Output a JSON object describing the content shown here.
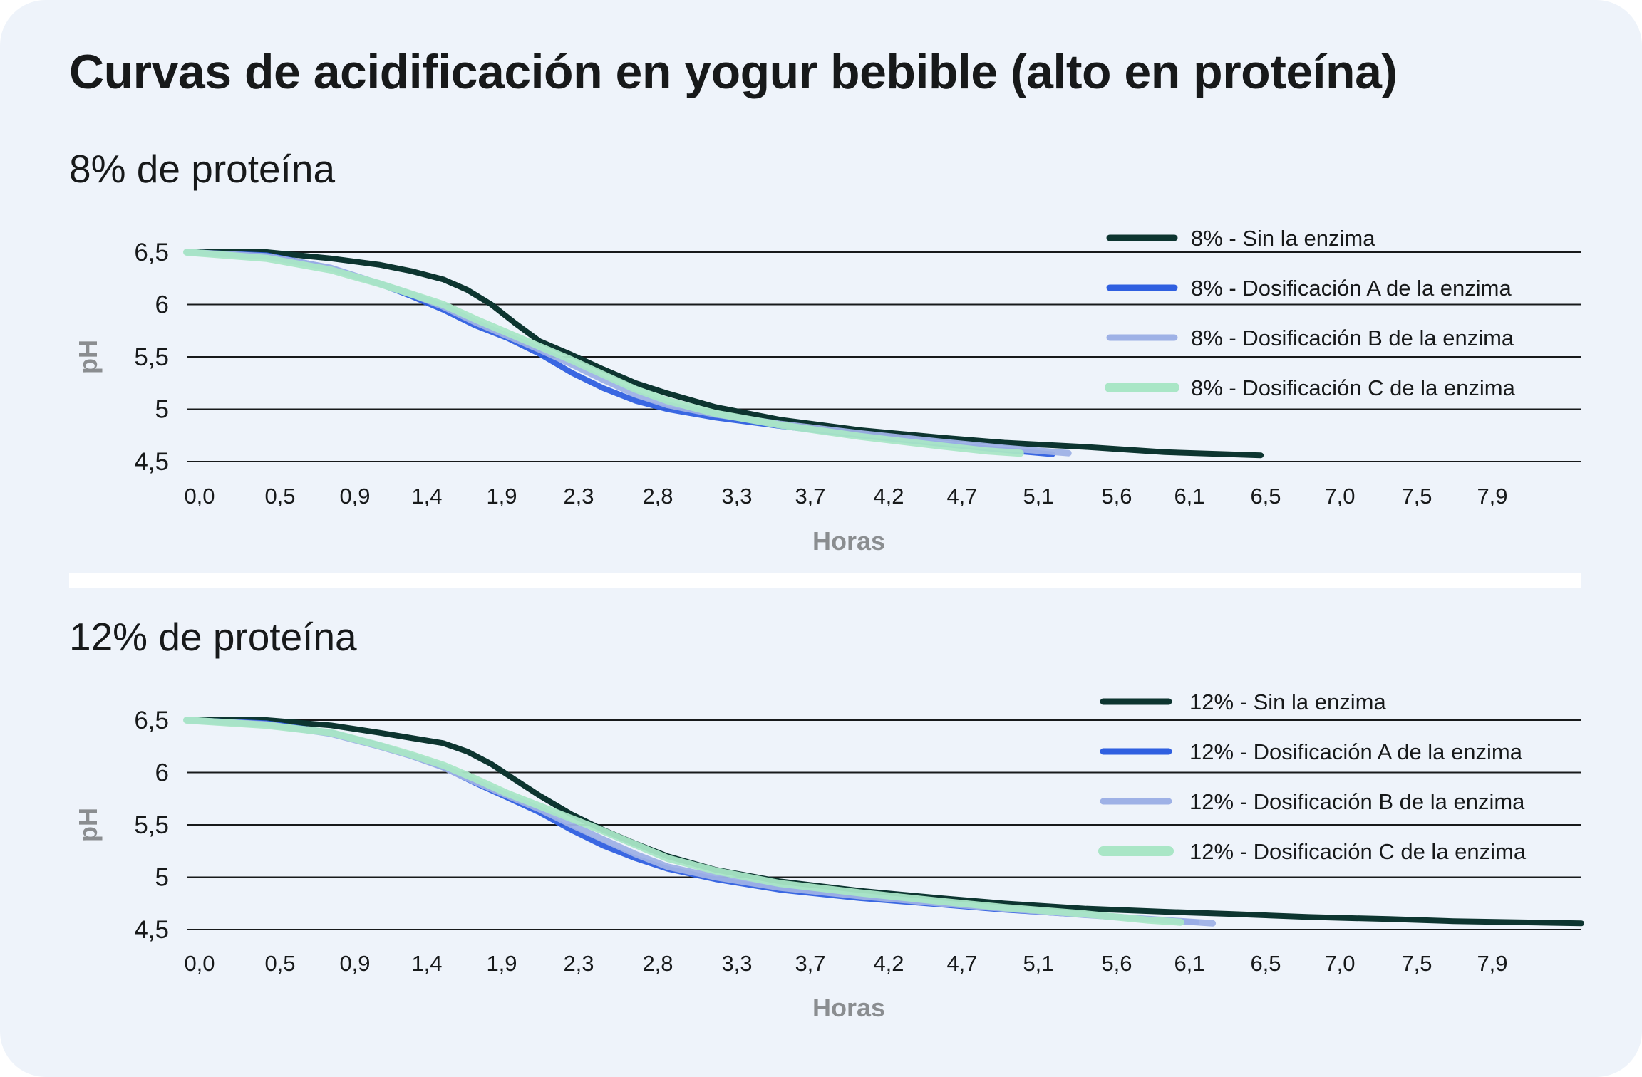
{
  "title": "Curvas de acidificación en yogur bebible (alto en proteína)",
  "colors": {
    "background": "#eef3fa",
    "sin_enzima": "#0d3530",
    "dosis_a": "#2f5fe0",
    "dosis_b": "#9eb1e6",
    "dosis_c": "#a9e6c6"
  },
  "chart_data": [
    {
      "type": "line",
      "title": "8% de proteína",
      "xlabel": "Horas",
      "ylabel": "pH",
      "x_tick_labels": [
        "0,0",
        "0,5",
        "0,9",
        "1,4",
        "1,9",
        "2,3",
        "2,8",
        "3,3",
        "3,7",
        "4,2",
        "4,7",
        "5,1",
        "5,6",
        "6,1",
        "6,5",
        "7,0",
        "7,5",
        "7,9"
      ],
      "y_tick_labels": [
        "6,5",
        "6",
        "5,5",
        "5",
        "4,5"
      ],
      "xlim": [
        0,
        8.7
      ],
      "ylim": [
        4.5,
        6.5
      ],
      "grid": "horizontal",
      "legend": "top-right",
      "series": [
        {
          "name": "8% - Sin la enzima",
          "color": "#0d3530",
          "x": [
            0,
            0.5,
            0.9,
            1.2,
            1.4,
            1.6,
            1.75,
            1.9,
            2.05,
            2.2,
            2.4,
            2.6,
            2.8,
            3.0,
            3.3,
            3.7,
            4.2,
            4.7,
            5.1,
            5.6,
            6.1,
            6.5,
            6.7
          ],
          "y": [
            6.5,
            6.5,
            6.44,
            6.38,
            6.32,
            6.24,
            6.14,
            6.0,
            5.82,
            5.65,
            5.52,
            5.38,
            5.25,
            5.15,
            5.02,
            4.9,
            4.8,
            4.73,
            4.68,
            4.64,
            4.59,
            4.57,
            4.56
          ]
        },
        {
          "name": "8% - Dosificación A de la enzima",
          "color": "#2f5fe0",
          "x": [
            0,
            0.5,
            0.9,
            1.2,
            1.4,
            1.6,
            1.8,
            2.0,
            2.2,
            2.4,
            2.6,
            2.8,
            3.0,
            3.3,
            3.7,
            4.2,
            4.7,
            5.1,
            5.4
          ],
          "y": [
            6.5,
            6.47,
            6.35,
            6.2,
            6.08,
            5.95,
            5.8,
            5.68,
            5.53,
            5.35,
            5.2,
            5.08,
            5.0,
            4.92,
            4.84,
            4.75,
            4.67,
            4.61,
            4.57
          ]
        },
        {
          "name": "8% - Dosificación B de la enzima",
          "color": "#9eb1e6",
          "x": [
            0,
            0.5,
            0.9,
            1.2,
            1.4,
            1.6,
            1.8,
            2.0,
            2.2,
            2.4,
            2.6,
            2.8,
            3.0,
            3.3,
            3.7,
            4.2,
            4.7,
            5.1,
            5.5
          ],
          "y": [
            6.5,
            6.46,
            6.35,
            6.2,
            6.1,
            5.98,
            5.83,
            5.7,
            5.57,
            5.43,
            5.28,
            5.14,
            5.04,
            4.95,
            4.86,
            4.77,
            4.69,
            4.63,
            4.58
          ]
        },
        {
          "name": "8% - Dosificación C de la enzima",
          "color": "#a9e6c6",
          "x": [
            0,
            0.5,
            0.9,
            1.2,
            1.4,
            1.6,
            1.8,
            2.0,
            2.2,
            2.4,
            2.6,
            2.8,
            3.0,
            3.3,
            3.7,
            4.2,
            4.7,
            5.0,
            5.2
          ],
          "y": [
            6.5,
            6.44,
            6.33,
            6.2,
            6.1,
            6.0,
            5.86,
            5.73,
            5.6,
            5.47,
            5.33,
            5.19,
            5.08,
            4.96,
            4.85,
            4.74,
            4.65,
            4.6,
            4.58
          ]
        }
      ]
    },
    {
      "type": "line",
      "title": "12% de proteína",
      "xlabel": "Horas",
      "ylabel": "pH",
      "x_tick_labels": [
        "0,0",
        "0,5",
        "0,9",
        "1,4",
        "1,9",
        "2,3",
        "2,8",
        "3,3",
        "3,7",
        "4,2",
        "4,7",
        "5,1",
        "5,6",
        "6,1",
        "6,5",
        "7,0",
        "7,5",
        "7,9"
      ],
      "y_tick_labels": [
        "6,5",
        "6",
        "5,5",
        "5",
        "4,5"
      ],
      "xlim": [
        0,
        8.7
      ],
      "ylim": [
        4.5,
        6.5
      ],
      "grid": "horizontal",
      "legend": "top-right",
      "series": [
        {
          "name": "12% - Sin la enzima",
          "color": "#0d3530",
          "x": [
            0,
            0.5,
            0.9,
            1.2,
            1.4,
            1.6,
            1.75,
            1.9,
            2.05,
            2.2,
            2.4,
            2.6,
            2.8,
            3.0,
            3.3,
            3.7,
            4.2,
            4.7,
            5.1,
            5.6,
            6.1,
            6.5,
            7.0,
            7.5,
            7.9,
            8.3,
            8.7
          ],
          "y": [
            6.5,
            6.5,
            6.45,
            6.38,
            6.33,
            6.28,
            6.2,
            6.08,
            5.93,
            5.78,
            5.6,
            5.45,
            5.32,
            5.2,
            5.07,
            4.96,
            4.87,
            4.8,
            4.75,
            4.7,
            4.67,
            4.65,
            4.62,
            4.6,
            4.58,
            4.57,
            4.56
          ]
        },
        {
          "name": "12% - Dosificación A de la enzima",
          "color": "#2f5fe0",
          "x": [
            0,
            0.5,
            0.9,
            1.2,
            1.4,
            1.6,
            1.8,
            2.0,
            2.2,
            2.4,
            2.6,
            2.8,
            3.0,
            3.3,
            3.7,
            4.2,
            4.7,
            5.1,
            5.6,
            6.1,
            6.3
          ],
          "y": [
            6.5,
            6.47,
            6.38,
            6.26,
            6.16,
            6.05,
            5.9,
            5.76,
            5.62,
            5.45,
            5.3,
            5.18,
            5.08,
            4.98,
            4.88,
            4.8,
            4.74,
            4.69,
            4.64,
            4.59,
            4.57
          ]
        },
        {
          "name": "12% - Dosificación B de la enzima",
          "color": "#9eb1e6",
          "x": [
            0,
            0.5,
            0.9,
            1.2,
            1.4,
            1.6,
            1.8,
            2.0,
            2.2,
            2.4,
            2.6,
            2.8,
            3.0,
            3.3,
            3.7,
            4.2,
            4.7,
            5.1,
            5.6,
            6.1,
            6.4
          ],
          "y": [
            6.5,
            6.46,
            6.37,
            6.25,
            6.16,
            6.05,
            5.91,
            5.78,
            5.65,
            5.5,
            5.36,
            5.22,
            5.1,
            5.0,
            4.9,
            4.82,
            4.75,
            4.7,
            4.64,
            4.59,
            4.56
          ]
        },
        {
          "name": "12% - Dosificación C de la enzima",
          "color": "#a9e6c6",
          "x": [
            0,
            0.5,
            0.9,
            1.2,
            1.4,
            1.6,
            1.8,
            2.0,
            2.2,
            2.4,
            2.6,
            2.8,
            3.0,
            3.3,
            3.7,
            4.2,
            4.7,
            5.1,
            5.6,
            6.0,
            6.2
          ],
          "y": [
            6.5,
            6.45,
            6.38,
            6.26,
            6.17,
            6.07,
            5.94,
            5.8,
            5.68,
            5.56,
            5.44,
            5.31,
            5.18,
            5.06,
            4.94,
            4.85,
            4.77,
            4.71,
            4.65,
            4.59,
            4.57
          ]
        }
      ]
    }
  ]
}
